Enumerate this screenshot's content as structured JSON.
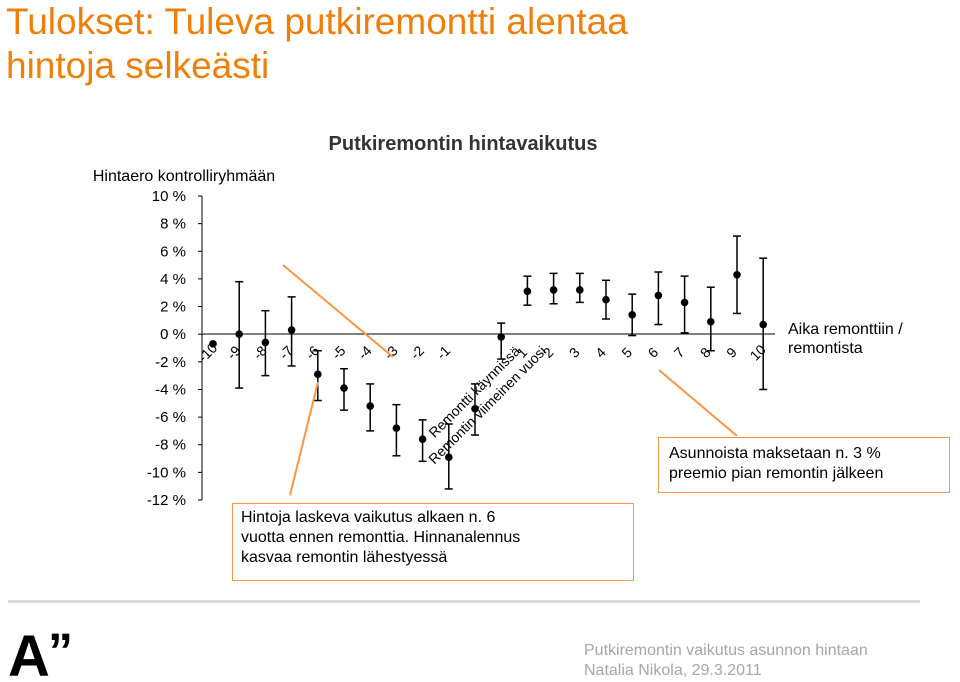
{
  "title_line1": "Tulokset: Tuleva putkiremontti alentaa",
  "title_line2": "hintoja selkeästi",
  "footer": {
    "line1": "Putkiremontin vaikutus asunnon hintaan",
    "line2": "Natalia Nikola, 29.3.2011"
  },
  "logo": {
    "letter": "A",
    "quote": "”"
  },
  "callouts": {
    "left_line1": "Hintoja laskeva vaikutus alkaen n. 6",
    "left_line2": "vuotta ennen remonttia. Hinnanalennus",
    "left_line3": "kasvaa remontin lähestyessä",
    "right_line1": "Asunnoista maksetaan n. 3 %",
    "right_line2": "preemio pian remontin jälkeen"
  },
  "side_label_line1": "Aika remonttiin /",
  "side_label_line2": "remontista",
  "colors": {
    "title": "#F07F09",
    "arrow": "#F79646",
    "footer": "#A6A6A6"
  },
  "chart_data": {
    "type": "scatter",
    "title": "Putkiremontin hintavaikutus",
    "ylabel": "Hintaero kontrolliryhmään",
    "ylim": [
      -12,
      10
    ],
    "yticks": [
      10,
      8,
      6,
      4,
      2,
      0,
      -2,
      -4,
      -6,
      -8,
      -10,
      -12
    ],
    "ytick_labels": [
      "10 %",
      "8 %",
      "6 %",
      "4 %",
      "2 %",
      "0 %",
      "-2 %",
      "-4 %",
      "-6 %",
      "-8 %",
      "-10 %",
      "-12 %"
    ],
    "categories": [
      "-10",
      "-9",
      "-8",
      "-7",
      "-6",
      "-5",
      "-4",
      "-3",
      "-2",
      "-1",
      "Remontti käynnissä",
      "Remontin viimeinen vuosi",
      "1",
      "2",
      "3",
      "4",
      "5",
      "6",
      "7",
      "8",
      "9",
      "10"
    ],
    "values": [
      -0.7,
      0.0,
      -0.6,
      0.3,
      -2.9,
      -3.9,
      -5.2,
      -6.8,
      -7.6,
      -8.9,
      -5.4,
      -0.2,
      3.1,
      3.2,
      3.2,
      2.5,
      1.4,
      2.8,
      2.3,
      0.9,
      4.3,
      0.7
    ],
    "error_low": [
      -0.7,
      -3.9,
      -3.0,
      -2.3,
      -4.8,
      -5.5,
      -7.0,
      -8.8,
      -9.2,
      -11.2,
      -7.3,
      -1.8,
      2.1,
      2.2,
      2.3,
      1.1,
      -0.1,
      0.7,
      0.1,
      -1.2,
      1.5,
      -4.0
    ],
    "error_high": [
      -0.7,
      3.8,
      1.7,
      2.7,
      -1.2,
      -2.5,
      -3.6,
      -5.1,
      -6.2,
      -6.5,
      -3.6,
      0.8,
      4.2,
      4.4,
      4.4,
      3.9,
      2.9,
      4.5,
      4.2,
      3.4,
      7.1,
      5.5
    ]
  }
}
